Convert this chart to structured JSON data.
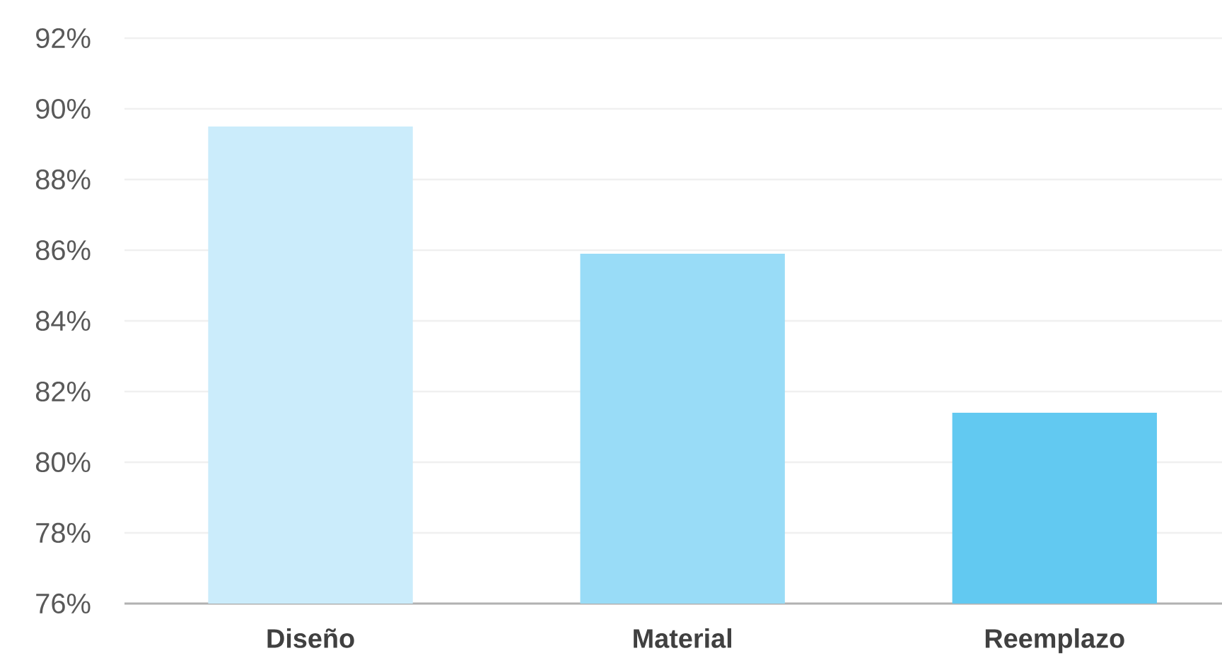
{
  "chart_data": {
    "type": "bar",
    "categories": [
      "Diseño",
      "Material",
      "Reemplazo"
    ],
    "values": [
      89.5,
      85.9,
      81.4
    ],
    "colors": [
      "#cbecfb",
      "#99dcf7",
      "#62c9f1"
    ],
    "ylim": [
      76,
      92
    ],
    "yticks": [
      {
        "value": 76,
        "label": "76%"
      },
      {
        "value": 78,
        "label": "78%"
      },
      {
        "value": 80,
        "label": "80%"
      },
      {
        "value": 82,
        "label": "82%"
      },
      {
        "value": 84,
        "label": "84%"
      },
      {
        "value": 86,
        "label": "86%"
      },
      {
        "value": 88,
        "label": "88%"
      },
      {
        "value": 90,
        "label": "90%"
      },
      {
        "value": 92,
        "label": "92%"
      }
    ],
    "grid": "y"
  }
}
